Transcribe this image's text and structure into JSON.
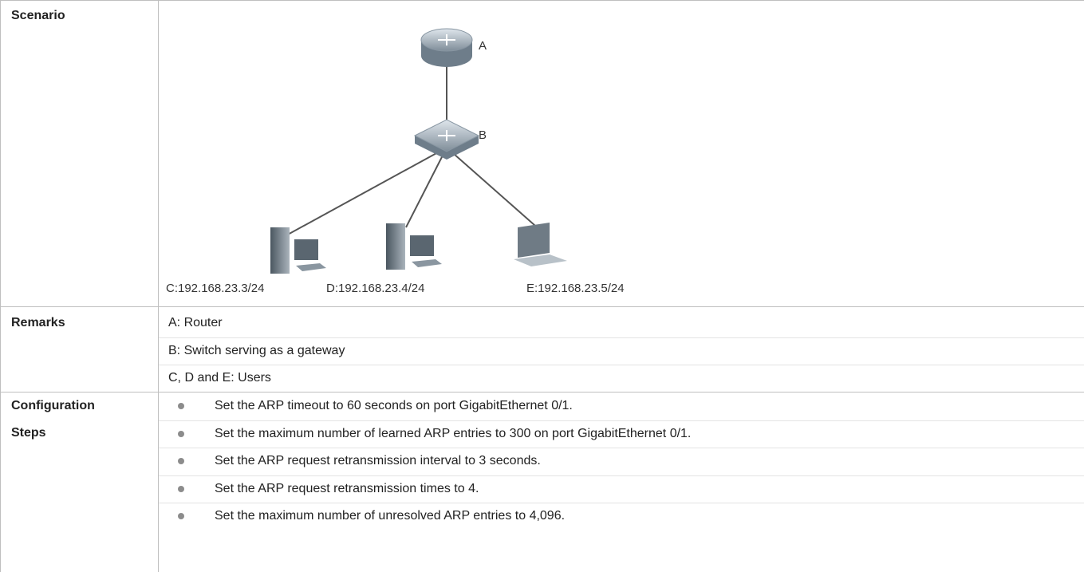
{
  "table": {
    "rows": [
      {
        "label": "Scenario",
        "diagram": {
          "nodes": [
            {
              "label": "A"
            },
            {
              "label": "B"
            },
            {
              "label": "C:192.168.23.3/24"
            },
            {
              "label": "D:192.168.23.4/24"
            },
            {
              "label": "E:192.168.23.5/24"
            }
          ]
        }
      },
      {
        "label": "Remarks",
        "lines": [
          "A: Router",
          "B: Switch serving as a gateway",
          "C, D and E: Users"
        ]
      },
      {
        "label": [
          "Configuration",
          "Steps"
        ],
        "items": [
          "Set the ARP timeout to 60 seconds on port GigabitEthernet 0/1.",
          "Set the maximum number of learned ARP entries to 300 on port GigabitEthernet 0/1.",
          "Set the ARP request retransmission interval to 3 seconds.",
          "Set the ARP request retransmission times to 4.",
          "Set the maximum number of unresolved ARP entries to 4,096."
        ]
      }
    ]
  }
}
